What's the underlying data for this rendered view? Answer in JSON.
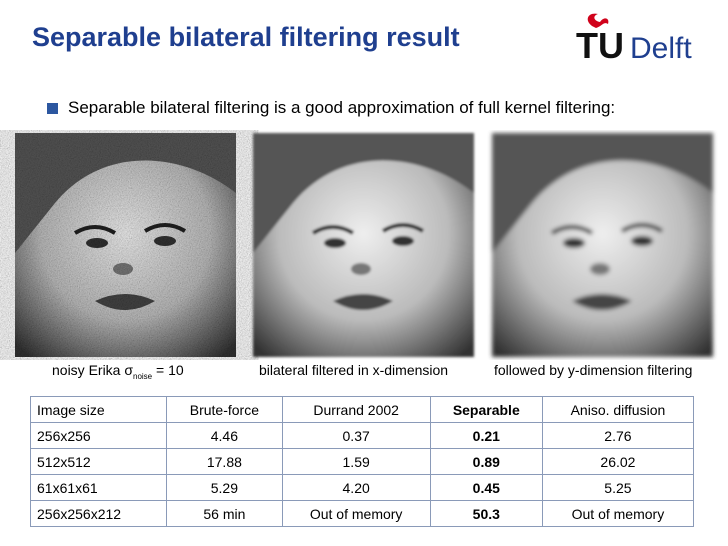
{
  "header": {
    "title": "Separable bilateral filtering result",
    "logo": {
      "tu": "TU",
      "delft": "Delft"
    }
  },
  "bullet": "Separable bilateral filtering is a good approximation of full kernel filtering:",
  "images": [
    {
      "caption": {
        "text": "noisy Erika σ",
        "subscript": "noise",
        "suffix": " = 10"
      }
    },
    {
      "caption": "bilateral filtered in x-dimension"
    },
    {
      "caption": "followed by y-dimension filtering"
    }
  ],
  "table": {
    "header": [
      "Image size",
      "Brute-force",
      "Durrand 2002",
      "Separable",
      "Aniso. diffusion"
    ],
    "rows": [
      [
        "256x256",
        "4.46",
        "0.37",
        "0.21",
        "2.76"
      ],
      [
        "512x512",
        "17.88",
        "1.59",
        "0.89",
        "26.02"
      ],
      [
        "61x61x61",
        "5.29",
        "4.20",
        "0.45",
        "5.25"
      ],
      [
        "256x256x212",
        "56 min",
        "Out of memory",
        "50.3",
        "Out of memory"
      ]
    ]
  }
}
